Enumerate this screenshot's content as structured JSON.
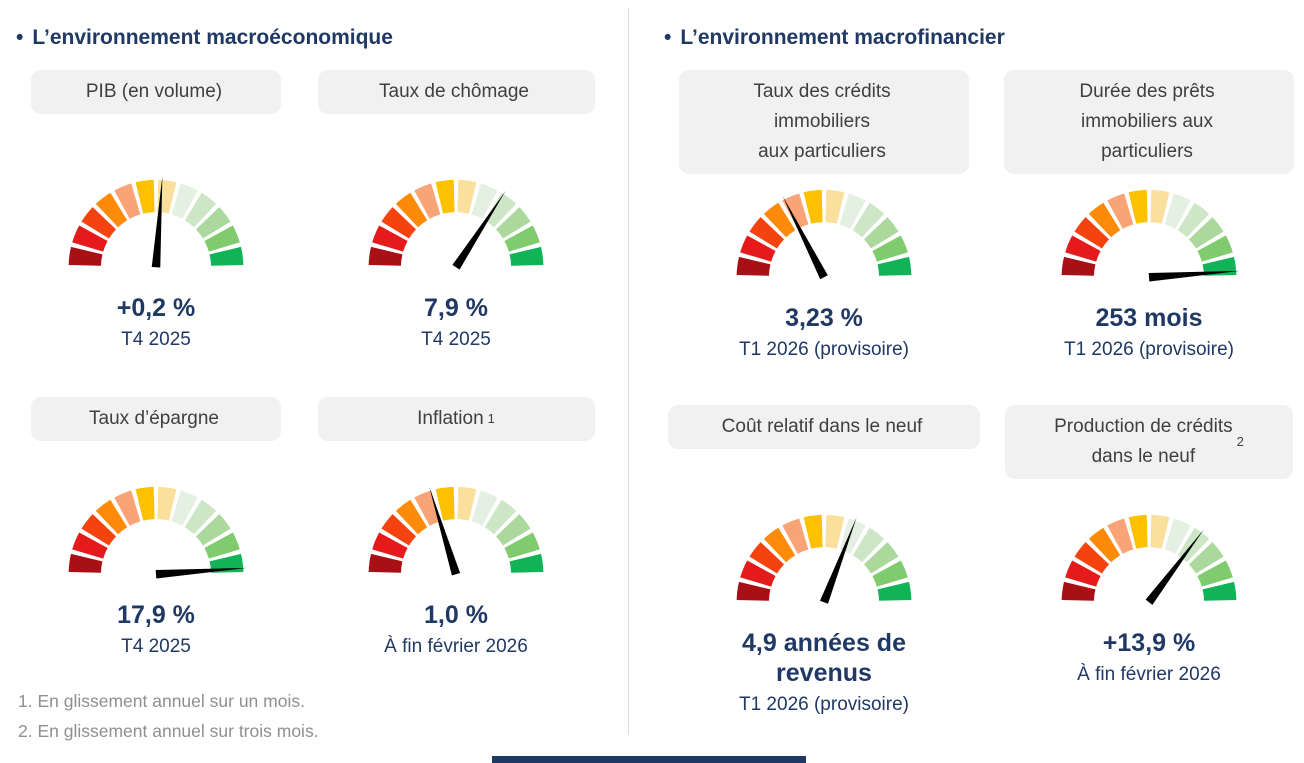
{
  "palette": {
    "navy": "#1f3864",
    "pill_bg": "#f1f1f1",
    "pill_text": "#3f3f3f",
    "footnote_text": "#8f8f8f",
    "needle": "#000000",
    "divider": "#d9d9d9"
  },
  "gauge": {
    "type": "semicircle",
    "arc_degrees": 180,
    "segments": 12,
    "segment_colors": [
      "#a91016",
      "#e41a1b",
      "#f54310",
      "#fd8b09",
      "#f8a476",
      "#fdc101",
      "#fbdf9d",
      "#e4f0e2",
      "#cde6c5",
      "#abd99d",
      "#80cb6d",
      "#10b457"
    ]
  },
  "left": {
    "bullet": "•",
    "title": "L’environnement macroéconomique",
    "cards": [
      {
        "label": "PIB (en volume)",
        "label_sup": "",
        "needle_deg": 4,
        "value": "+0,2 %",
        "period": "T4 2025"
      },
      {
        "label": "Taux de chômage",
        "label_sup": "",
        "needle_deg": 33,
        "value": "7,9 %",
        "period": "T4 2025"
      },
      {
        "label": "Taux d’épargne",
        "label_sup": "",
        "needle_deg": 86,
        "value": "17,9 %",
        "period": "T4 2025"
      },
      {
        "label": "Inflation",
        "label_sup": "1",
        "needle_deg": -17,
        "value": "1,0 %",
        "period": "À fin février 2026"
      }
    ]
  },
  "right": {
    "bullet": "•",
    "title": "L’environnement macrofinancier",
    "cards": [
      {
        "label": "Taux des crédits\nimmobiliers\naux particuliers",
        "label_sup": "",
        "needle_deg": -27,
        "value": "3,23 %",
        "period": "T1 2026 (provisoire)"
      },
      {
        "label": "Durée des prêts\nimmobiliers aux\nparticuliers",
        "label_sup": "",
        "needle_deg": 86,
        "value": "253 mois",
        "period": "T1 2026 (provisoire)"
      },
      {
        "label": "Coût relatif dans le neuf",
        "label_sup": "",
        "needle_deg": 21,
        "value": "4,9 années de\nrevenus",
        "period": "T1 2026 (provisoire)"
      },
      {
        "label": "Production de crédits\ndans le neuf",
        "label_sup": "2",
        "needle_deg": 37,
        "value": "+13,9 %",
        "period": "À fin février 2026"
      }
    ]
  },
  "footnotes": [
    "1. En glissement annuel sur un mois.",
    "2. En glissement annuel sur trois mois."
  ],
  "chart_data": [
    {
      "type": "gauge",
      "section": "L’environnement macroéconomique",
      "title": "PIB (en volume)",
      "value": "+0,2 %",
      "period": "T4 2025",
      "needle_deg_from_vertical": 4,
      "scale": "red (bad) to green (good), 12 segments over 180°"
    },
    {
      "type": "gauge",
      "section": "L’environnement macroéconomique",
      "title": "Taux de chômage",
      "value": "7,9 %",
      "period": "T4 2025",
      "needle_deg_from_vertical": 33,
      "scale": "red (bad) to green (good), 12 segments over 180°"
    },
    {
      "type": "gauge",
      "section": "L’environnement macroéconomique",
      "title": "Taux d’épargne",
      "value": "17,9 %",
      "period": "T4 2025",
      "needle_deg_from_vertical": 86,
      "scale": "red (bad) to green (good), 12 segments over 180°"
    },
    {
      "type": "gauge",
      "section": "L’environnement macroéconomique",
      "title": "Inflation (1)",
      "value": "1,0 %",
      "period": "À fin février 2026",
      "needle_deg_from_vertical": -17,
      "scale": "red (bad) to green (good), 12 segments over 180°"
    },
    {
      "type": "gauge",
      "section": "L’environnement macrofinancier",
      "title": "Taux des crédits immobiliers aux particuliers",
      "value": "3,23 %",
      "period": "T1 2026 (provisoire)",
      "needle_deg_from_vertical": -27,
      "scale": "red (bad) to green (good), 12 segments over 180°"
    },
    {
      "type": "gauge",
      "section": "L’environnement macrofinancier",
      "title": "Durée des prêts immobiliers aux particuliers",
      "value": "253 mois",
      "period": "T1 2026 (provisoire)",
      "needle_deg_from_vertical": 86,
      "scale": "red (bad) to green (good), 12 segments over 180°"
    },
    {
      "type": "gauge",
      "section": "L’environnement macrofinancier",
      "title": "Coût relatif dans le neuf",
      "value": "4,9 années de revenus",
      "period": "T1 2026 (provisoire)",
      "needle_deg_from_vertical": 21,
      "scale": "red (bad) to green (good), 12 segments over 180°"
    },
    {
      "type": "gauge",
      "section": "L’environnement macrofinancier",
      "title": "Production de crédits dans le neuf (2)",
      "value": "+13,9 %",
      "period": "À fin février 2026",
      "needle_deg_from_vertical": 37,
      "scale": "red (bad) to green (good), 12 segments over 180°"
    }
  ]
}
